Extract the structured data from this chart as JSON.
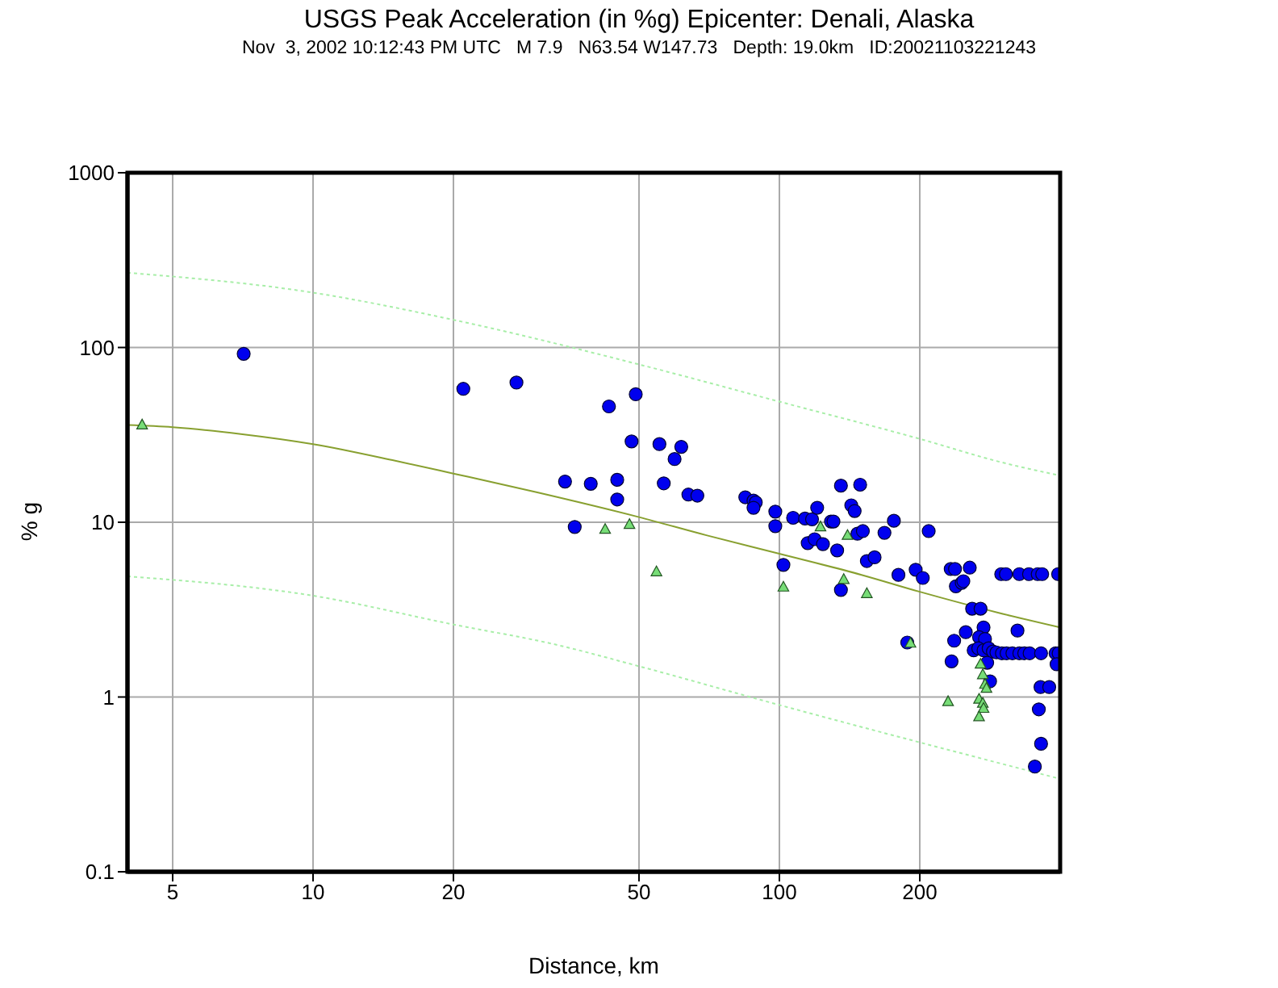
{
  "chart_data": {
    "type": "scatter",
    "title": "USGS Peak Acceleration (in %g) Epicenter: Denali, Alaska",
    "subtitle": "Nov  3, 2002 10:12:43 PM UTC   M 7.9   N63.54 W147.73   Depth: 19.0km   ID:20021103221243",
    "xlabel": "Distance, km",
    "ylabel": "% g",
    "log": "xy",
    "xlim": [
      4,
      400
    ],
    "ylim": [
      0.1,
      1000
    ],
    "xticks": [
      5,
      10,
      20,
      50,
      100,
      200
    ],
    "yticks": [
      0.1,
      1,
      10,
      100,
      1000
    ],
    "grid": true,
    "series": [
      {
        "marker": "circle",
        "color": "#0000ee",
        "x": [
          7.1,
          21,
          27.3,
          34.7,
          36.4,
          39.4,
          43.1,
          44.9,
          44.9,
          48.2,
          49.2,
          55.3,
          56.5,
          59.6,
          61.6,
          63.8,
          66.7,
          84.5,
          88,
          89,
          88,
          98,
          98,
          102,
          107,
          113.5,
          117.5,
          120.5,
          115,
          119,
          124,
          129,
          130.6,
          133,
          135.5,
          135.5,
          142.6,
          145,
          147,
          149,
          151,
          154,
          160,
          168,
          176,
          180,
          188,
          196,
          203,
          209,
          233,
          238,
          256,
          239,
          246,
          248,
          259,
          270,
          299,
          306,
          327,
          343,
          358,
          366,
          396,
          237,
          234,
          251,
          274,
          268,
          276,
          324,
          261,
          267,
          274,
          281,
          287,
          292,
          300,
          307,
          316,
          327,
          335,
          344,
          364,
          391,
          397,
          393,
          279,
          283,
          363,
          379,
          360,
          364,
          353
        ],
        "values": [
          92,
          58,
          63,
          17.1,
          9.4,
          16.6,
          46,
          17.5,
          13.5,
          29,
          54,
          28,
          16.7,
          23,
          27,
          14.4,
          14.2,
          13.9,
          13.3,
          13,
          12.1,
          11.5,
          9.5,
          5.7,
          10.6,
          10.5,
          10.4,
          12.1,
          7.6,
          8,
          7.5,
          10.1,
          10.1,
          6.9,
          16.2,
          4.1,
          12.5,
          11.6,
          8.6,
          16.4,
          8.9,
          6,
          6.3,
          8.7,
          10.2,
          5,
          2.05,
          5.35,
          4.8,
          8.9,
          5.4,
          5.4,
          5.5,
          4.3,
          4.5,
          4.6,
          3.2,
          3.2,
          5.05,
          5.05,
          5.05,
          5.05,
          5.05,
          5.05,
          5.05,
          2.1,
          1.6,
          2.35,
          2.5,
          2.2,
          2.15,
          2.4,
          1.85,
          1.9,
          1.85,
          1.9,
          1.82,
          1.8,
          1.78,
          1.78,
          1.78,
          1.78,
          1.78,
          1.78,
          1.78,
          1.78,
          1.78,
          1.54,
          1.57,
          1.23,
          1.14,
          1.14,
          0.85,
          0.54,
          0.4
        ]
      },
      {
        "marker": "triangle",
        "color": "#77dd77",
        "x": [
          4.3,
          42.3,
          47.7,
          54.5,
          102,
          122.5,
          140,
          137.4,
          154,
          191,
          230,
          270,
          273,
          276,
          278,
          268,
          273,
          274,
          268
        ],
        "values": [
          36,
          9.1,
          9.7,
          5.2,
          4.25,
          9.4,
          8.4,
          4.7,
          3.9,
          2.03,
          0.94,
          1.54,
          1.34,
          1.18,
          1.12,
          0.97,
          0.92,
          0.86,
          0.77
        ]
      },
      {
        "type": "line",
        "marker": "none",
        "line_style": "solid",
        "color": "#88a030",
        "x": [
          4,
          5,
          7,
          10,
          15,
          20,
          30,
          50,
          70,
          100,
          150,
          200,
          300,
          400
        ],
        "values": [
          36,
          35,
          32,
          28,
          22.5,
          19,
          14.9,
          10.7,
          8.4,
          6.6,
          5,
          4,
          3,
          2.5
        ]
      },
      {
        "type": "line",
        "marker": "none",
        "line_style": "dotted",
        "color": "#a8eea8",
        "x": [
          4,
          10,
          20,
          50,
          100,
          200,
          300,
          400
        ],
        "values": [
          268,
          206,
          144,
          80,
          49,
          30,
          22,
          18.5
        ]
      },
      {
        "type": "line",
        "marker": "none",
        "line_style": "dotted",
        "color": "#a8eea8",
        "x": [
          4,
          10,
          20,
          33,
          50,
          100,
          200,
          400
        ],
        "values": [
          4.9,
          3.8,
          2.6,
          2,
          1.5,
          0.9,
          0.55,
          0.34
        ]
      }
    ]
  }
}
